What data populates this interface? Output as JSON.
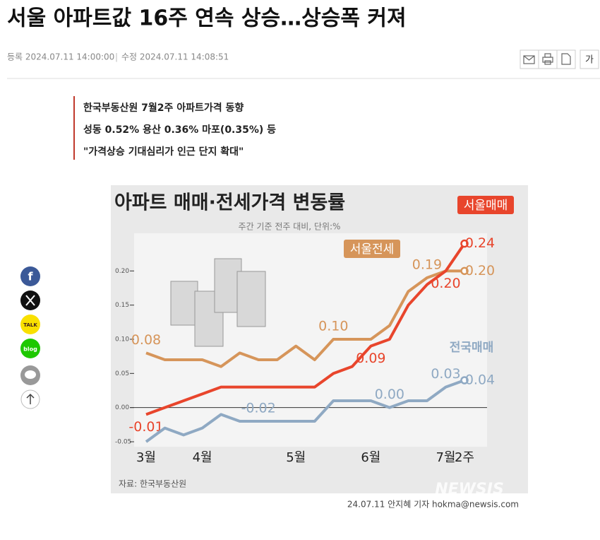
{
  "header": {
    "title": "서울 아파트값 16주 연속 상승…상승폭 커져",
    "registered": "등록 2024.07.11 14:00:00",
    "modified": "수정 2024.07.11 14:08:51",
    "font_button": "가"
  },
  "summary": [
    "한국부동산원 7월2주 아파트가격 동향",
    "성동 0.52% 용산 0.36% 마포(0.35%) 등",
    "\"가격상승 기대심리가 인근 단지 확대\""
  ],
  "share": {
    "facebook": "f",
    "kakao": "TALK",
    "blog": "blog"
  },
  "chart_data": {
    "type": "line",
    "title": "아파트 매매·전세가격 변동률",
    "subtitle": "주간 기준 전주 대비, 단위:%",
    "source": "자료: 한국부동산원",
    "watermark": "NEWSIS",
    "categories": [
      "3월",
      null,
      null,
      "4월",
      null,
      null,
      null,
      null,
      "5월",
      null,
      null,
      null,
      "6월",
      null,
      null,
      null,
      "7월",
      "2주"
    ],
    "ylim": [
      -0.05,
      0.25
    ],
    "yticks": [
      {
        "value": -0.05,
        "label": "-0.05"
      },
      {
        "value": 0,
        "label": "0.00"
      },
      {
        "value": 0.05,
        "label": "0.05"
      },
      {
        "value": 0.1,
        "label": "0.10"
      },
      {
        "value": 0.15,
        "label": "0.15"
      },
      {
        "value": 0.2,
        "label": "0.20"
      }
    ],
    "series": [
      {
        "name": "서울전세",
        "color": "#d6955a",
        "values": [
          0.08,
          0.07,
          0.07,
          0.07,
          0.06,
          0.08,
          0.07,
          0.07,
          0.09,
          0.07,
          0.1,
          0.1,
          0.1,
          0.12,
          0.17,
          0.19,
          0.2,
          0.2
        ],
        "value_labels": [
          "0.08",
          null,
          null,
          null,
          null,
          null,
          null,
          null,
          null,
          null,
          "0.10",
          null,
          null,
          null,
          null,
          "0.19",
          null,
          "0.20"
        ]
      },
      {
        "name": "서울매매",
        "color": "#e8452c",
        "values": [
          -0.01,
          0.0,
          0.01,
          0.02,
          0.03,
          0.03,
          0.03,
          0.03,
          0.03,
          0.03,
          0.05,
          0.06,
          0.09,
          0.1,
          0.15,
          0.18,
          0.2,
          0.24
        ],
        "value_labels": [
          "-0.01",
          null,
          null,
          null,
          null,
          null,
          null,
          null,
          null,
          null,
          null,
          null,
          "0.09",
          null,
          null,
          null,
          "0.20",
          "0.24"
        ]
      },
      {
        "name": "전국매매",
        "color": "#8fa9c3",
        "values": [
          -0.05,
          -0.03,
          -0.04,
          -0.03,
          -0.01,
          -0.02,
          -0.02,
          -0.02,
          -0.02,
          -0.02,
          0.01,
          0.01,
          0.01,
          0.0,
          0.01,
          0.01,
          0.03,
          0.04
        ],
        "value_labels": [
          null,
          null,
          null,
          null,
          null,
          null,
          "-0.02",
          null,
          null,
          null,
          null,
          null,
          null,
          "0.00",
          null,
          null,
          "0.03",
          "0.04"
        ]
      }
    ]
  },
  "caption": "24.07.11 안지혜 기자 hokma@newsis.com"
}
